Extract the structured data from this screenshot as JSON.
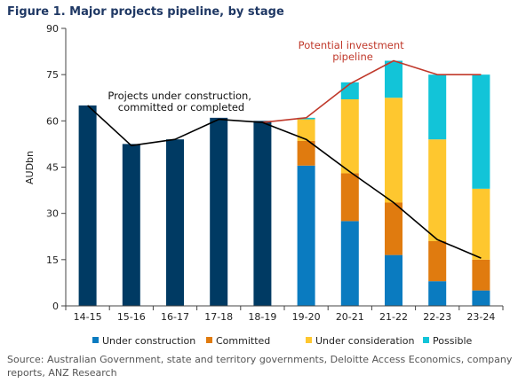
{
  "figure_title": "Figure 1. Major projects pipeline, by stage",
  "source_note": "Source: Australian Government, state and territory governments, Deloitte Access Economics, company reports, ANZ Research",
  "colors": {
    "total_bar": "#003a63",
    "under_construction": "#0a7bc0",
    "committed": "#e07b0f",
    "under_consideration": "#fec72f",
    "possible": "#12c4d8",
    "pipeline_line": "#c0392b",
    "construction_line": "#000000"
  },
  "chart_data": {
    "type": "bar",
    "title": "Figure 1. Major projects pipeline, by stage",
    "xlabel": "",
    "ylabel": "AUDbn",
    "ylim": [
      0,
      90
    ],
    "yticks": [
      0,
      15,
      30,
      45,
      60,
      75,
      90
    ],
    "grid": false,
    "legend": "bottom",
    "categories": [
      "14-15",
      "15-16",
      "16-17",
      "17-18",
      "18-19",
      "19-20",
      "20-21",
      "21-22",
      "22-23",
      "23-24"
    ],
    "historical_total": {
      "categories": [
        "14-15",
        "15-16",
        "16-17",
        "17-18",
        "18-19"
      ],
      "values": [
        65,
        52.5,
        54,
        61,
        60
      ]
    },
    "series": [
      {
        "name": "Under construction",
        "values": [
          null,
          null,
          null,
          null,
          null,
          45.5,
          27.5,
          16.5,
          8,
          5
        ]
      },
      {
        "name": "Committed",
        "values": [
          null,
          null,
          null,
          null,
          null,
          8,
          15.5,
          17,
          13,
          10
        ]
      },
      {
        "name": "Under consideration",
        "values": [
          null,
          null,
          null,
          null,
          null,
          7,
          24,
          34,
          33,
          23
        ]
      },
      {
        "name": "Possible",
        "values": [
          null,
          null,
          null,
          null,
          null,
          0.5,
          5.5,
          12,
          21,
          37
        ]
      }
    ],
    "lines": [
      {
        "label": "Potential investment pipeline",
        "values": [
          null,
          null,
          null,
          null,
          59.5,
          61,
          72,
          79.5,
          75,
          75
        ]
      },
      {
        "label": "Projects under construction, committed or completed",
        "values": [
          65,
          52,
          54,
          60.5,
          59.5,
          54,
          43.5,
          33.5,
          21.5,
          15.5
        ]
      }
    ],
    "annotations": [
      {
        "text_lines": [
          "Projects under construction,",
          "committed or completed"
        ]
      },
      {
        "text_lines": [
          "Potential investment",
          "pipeline"
        ]
      }
    ]
  }
}
